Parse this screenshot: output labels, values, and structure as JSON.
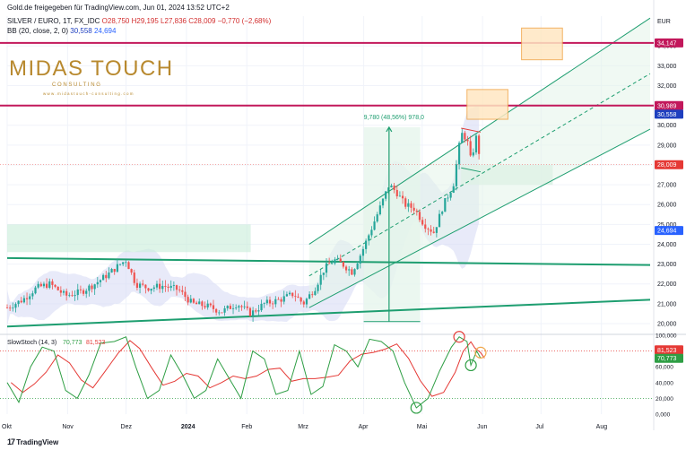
{
  "header": {
    "source": "Gold.de freigegeben für TradingView.com, Jun 01, 2024 13:52 UTC+2",
    "symbol": "SILVER / EURO, 1T, FX_IDC",
    "ohlc": "O28,750  H29,195  L27,836  C28,009  −0,770 (−2,68%)",
    "bb_label": "BB (20, close, 2, 0)",
    "bb_upper": "30,558",
    "bb_lower": "24,694"
  },
  "logo": {
    "main": "MIDAS TOUCH",
    "sub": "C O N S U L T I N G",
    "url": "w w w . m i d a s t o u c h - c o n s u l t i n g . c o m"
  },
  "footer": {
    "brand": "TradingView"
  },
  "colors": {
    "up": "#26a69a",
    "down": "#ef5350",
    "magenta": "#c2185b",
    "channel": "#1e9e70",
    "bb_fill": "#d8dcf5",
    "stoch_k": "#2e9e44",
    "stoch_d": "#e53935"
  },
  "chart_data": [
    {
      "type": "candlestick",
      "title": "SILVER / EURO, 1T, FX_IDC",
      "currency": "EUR",
      "ylim": [
        19.5,
        35.5
      ],
      "x_ticks": [
        "Okt",
        "Nov",
        "Dez",
        "2024",
        "Feb",
        "Mrz",
        "Apr",
        "Mai",
        "Jun",
        "Jul",
        "Aug"
      ],
      "x_tick_days": [
        0,
        31,
        61,
        92,
        123,
        152,
        183,
        213,
        244,
        274,
        305
      ],
      "y_ticks": [
        "20,000",
        "21,000",
        "22,000",
        "23,000",
        "24,000",
        "25,000",
        "26,000",
        "27,000",
        "28,000",
        "29,000",
        "30,000",
        "31,000",
        "32,000",
        "33,000",
        "34,000"
      ],
      "y_tick_values": [
        20,
        21,
        22,
        23,
        24,
        25,
        26,
        27,
        28,
        29,
        30,
        31,
        32,
        33,
        34
      ],
      "close_path": [
        [
          0,
          20.8
        ],
        [
          8,
          21.2
        ],
        [
          15,
          21.8
        ],
        [
          22,
          22.0
        ],
        [
          30,
          21.4
        ],
        [
          38,
          21.6
        ],
        [
          45,
          22.0
        ],
        [
          52,
          22.5
        ],
        [
          58,
          23.0
        ],
        [
          61,
          23.2
        ],
        [
          66,
          22.0
        ],
        [
          72,
          21.8
        ],
        [
          80,
          21.9
        ],
        [
          88,
          21.7
        ],
        [
          95,
          21.0
        ],
        [
          102,
          20.9
        ],
        [
          110,
          20.6
        ],
        [
          118,
          21.0
        ],
        [
          125,
          20.5
        ],
        [
          132,
          21.0
        ],
        [
          140,
          21.2
        ],
        [
          147,
          21.5
        ],
        [
          152,
          21.0
        ],
        [
          158,
          21.8
        ],
        [
          163,
          22.8
        ],
        [
          168,
          23.2
        ],
        [
          172,
          23.0
        ],
        [
          177,
          22.6
        ],
        [
          182,
          23.6
        ],
        [
          187,
          24.8
        ],
        [
          192,
          26.0
        ],
        [
          196,
          27.0
        ],
        [
          200,
          26.6
        ],
        [
          204,
          26.0
        ],
        [
          209,
          25.8
        ],
        [
          214,
          25.0
        ],
        [
          219,
          24.6
        ],
        [
          224,
          26.0
        ],
        [
          229,
          27.0
        ],
        [
          233,
          29.6
        ],
        [
          236,
          29.3
        ],
        [
          238,
          28.2
        ],
        [
          241,
          29.5
        ],
        [
          243,
          28.0
        ]
      ],
      "price_tags": [
        {
          "label": "34,147",
          "value": 34.147,
          "color": "#c2185b"
        },
        {
          "label": "30,989",
          "value": 30.989,
          "color": "#c2185b"
        },
        {
          "label": "30,558",
          "value": 30.558,
          "color": "#1e3fbf"
        },
        {
          "label": "28,009",
          "value": 28.009,
          "color": "#e53935"
        },
        {
          "label": "24,694",
          "value": 24.694,
          "color": "#2962ff"
        }
      ],
      "horizontal_lines": [
        34.147,
        30.989
      ],
      "measure_annotation": "9,780 (48,56%) 978,0",
      "measure_range": [
        20.1,
        29.9
      ]
    },
    {
      "type": "line",
      "title": "SlowStoch (14, 3)",
      "series": [
        {
          "name": "K",
          "last": "70,773",
          "color": "#2e9e44"
        },
        {
          "name": "D",
          "last": "81,523",
          "color": "#e53935"
        }
      ],
      "ylim": [
        0,
        100
      ],
      "y_ticks": [
        "0,000",
        "20,000",
        "40,000",
        "60,000",
        "80,000",
        "100,000"
      ],
      "y_tick_values": [
        0,
        20,
        40,
        60,
        80,
        100
      ],
      "levels": [
        80,
        20
      ],
      "k_path": [
        [
          0,
          40
        ],
        [
          6,
          15
        ],
        [
          12,
          60
        ],
        [
          18,
          85
        ],
        [
          24,
          80
        ],
        [
          30,
          30
        ],
        [
          36,
          20
        ],
        [
          42,
          50
        ],
        [
          48,
          90
        ],
        [
          55,
          92
        ],
        [
          61,
          98
        ],
        [
          66,
          60
        ],
        [
          72,
          20
        ],
        [
          78,
          30
        ],
        [
          84,
          75
        ],
        [
          90,
          50
        ],
        [
          96,
          20
        ],
        [
          102,
          30
        ],
        [
          108,
          70
        ],
        [
          114,
          45
        ],
        [
          120,
          20
        ],
        [
          126,
          80
        ],
        [
          132,
          70
        ],
        [
          138,
          25
        ],
        [
          144,
          30
        ],
        [
          150,
          80
        ],
        [
          156,
          25
        ],
        [
          162,
          35
        ],
        [
          168,
          88
        ],
        [
          174,
          80
        ],
        [
          180,
          60
        ],
        [
          186,
          95
        ],
        [
          192,
          92
        ],
        [
          198,
          80
        ],
        [
          204,
          40
        ],
        [
          210,
          8
        ],
        [
          216,
          20
        ],
        [
          222,
          55
        ],
        [
          228,
          85
        ],
        [
          232,
          98
        ],
        [
          236,
          92
        ],
        [
          238,
          62
        ],
        [
          241,
          80
        ],
        [
          243,
          71
        ]
      ]
    }
  ]
}
